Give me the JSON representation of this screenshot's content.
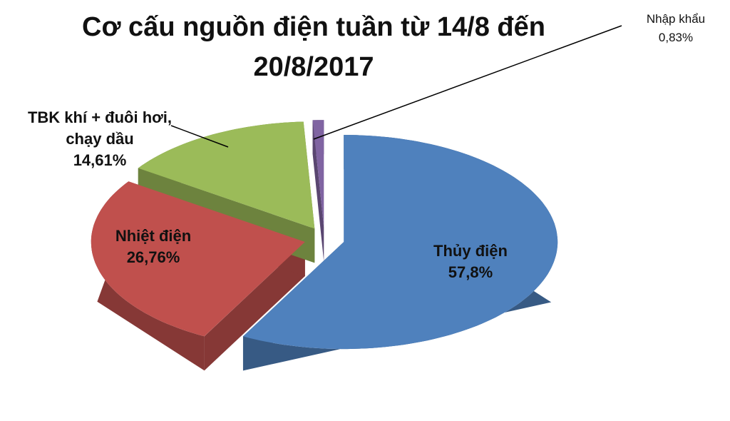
{
  "chart_data": {
    "type": "pie",
    "title": "Cơ cấu nguồn điện tuần từ 14/8 đến 20/8/2017",
    "categories": [
      "Thủy điện",
      "Nhiệt điện",
      "TBK khí + đuôi hơi, chạy dầu",
      "Nhập khẩu"
    ],
    "values": [
      57.8,
      26.76,
      14.61,
      0.83
    ],
    "value_labels": [
      "57,8%",
      "26,76%",
      "14,61%",
      "0,83%"
    ],
    "colors": [
      "#4f81bd",
      "#c0504d",
      "#9bbb59",
      "#8064a2"
    ]
  }
}
